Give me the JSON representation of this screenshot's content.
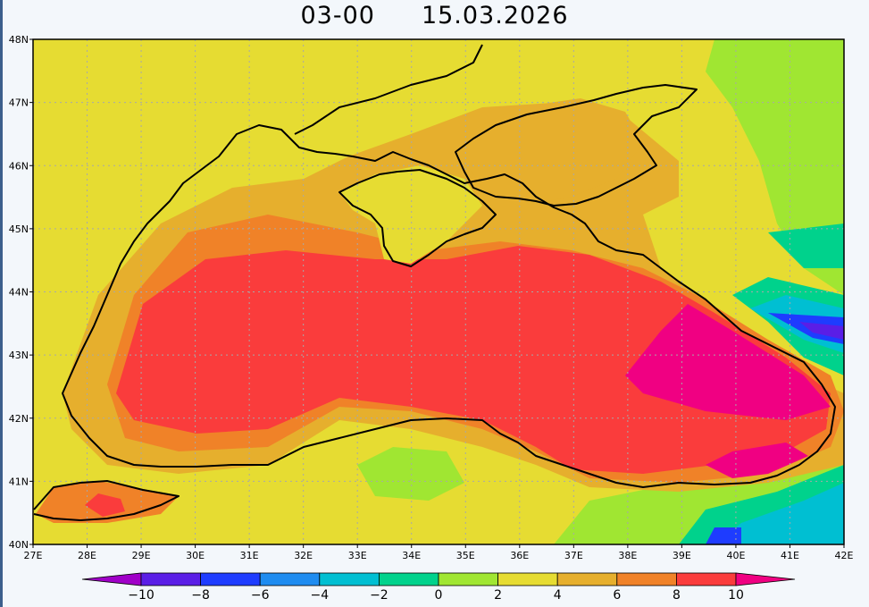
{
  "title": {
    "hour": "03-00",
    "date": "15.03.2026"
  },
  "map": {
    "lat_labels": [
      "48N",
      "47N",
      "46N",
      "45N",
      "44N",
      "43N",
      "42N",
      "41N",
      "40N"
    ],
    "lon_labels": [
      "27E",
      "28E",
      "29E",
      "30E",
      "31E",
      "32E",
      "33E",
      "34E",
      "35E",
      "36E",
      "37E",
      "38E",
      "39E",
      "40E",
      "41E",
      "42E"
    ],
    "lat_range": [
      40,
      48
    ],
    "lon_range": [
      27,
      42
    ],
    "grid": true
  },
  "colorbar": {
    "levels": [
      "-10",
      "-8",
      "-6",
      "-4",
      "-2",
      "0",
      "2",
      "4",
      "6",
      "8",
      "10"
    ],
    "colors": [
      "#a000c8",
      "#5a1ee6",
      "#1e3cff",
      "#1e8cf0",
      "#00bfd2",
      "#00d28c",
      "#a0e632",
      "#e6dc32",
      "#e6af2d",
      "#f08228",
      "#fa3c3c",
      "#f00082"
    ]
  }
}
